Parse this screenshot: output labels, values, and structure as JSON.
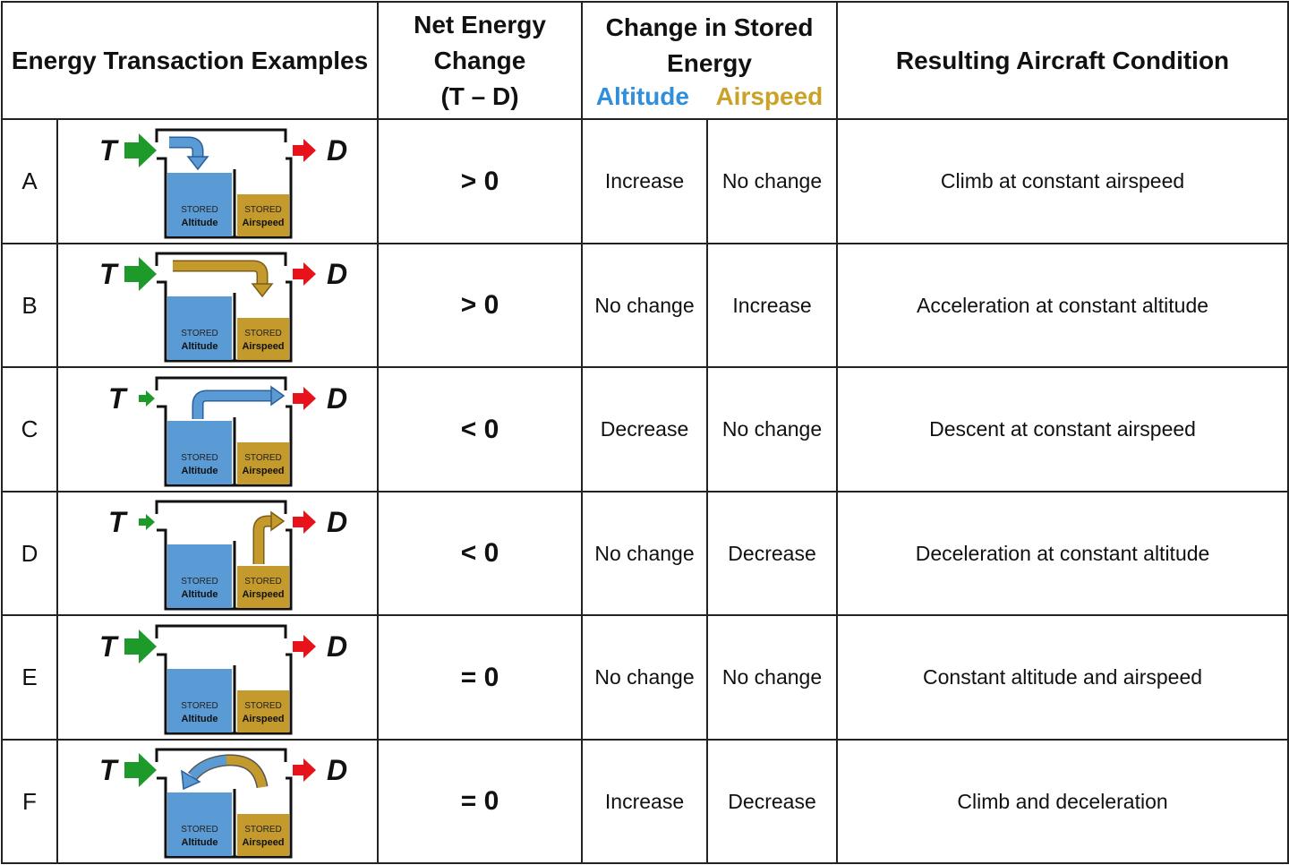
{
  "header": {
    "examples": "Energy Transaction Examples",
    "net_line1": "Net Energy",
    "net_line2": "Change",
    "net_line3": "(T – D)",
    "stored_line1": "Change in Stored",
    "stored_line2": "Energy",
    "altitude": "Altitude",
    "airspeed": "Airspeed",
    "result": "Resulting Aircraft Condition"
  },
  "diagram_labels": {
    "thrust": "T",
    "drag": "D",
    "stored": "STORED",
    "altitude": "Altitude",
    "airspeed": "Airspeed"
  },
  "colors": {
    "altitude_blue": "#5b9bd5",
    "airspeed_gold": "#c49a2c",
    "thrust_green": "#1e9a2a",
    "drag_red": "#e8131a",
    "header_altitude": "#2f8fdd",
    "header_airspeed": "#c9a227"
  },
  "rows": [
    {
      "letter": "A",
      "net": "> 0",
      "altitude": "Increase",
      "airspeed": "No change",
      "result": "Climb at constant airspeed",
      "thrust": "large",
      "flow": "thrust-to-altitude"
    },
    {
      "letter": "B",
      "net": "> 0",
      "altitude": "No change",
      "airspeed": "Increase",
      "result": "Acceleration at constant altitude",
      "thrust": "large",
      "flow": "thrust-to-airspeed"
    },
    {
      "letter": "C",
      "net": "< 0",
      "altitude": "Decrease",
      "airspeed": "No change",
      "result": "Descent at constant airspeed",
      "thrust": "small",
      "flow": "altitude-to-drag"
    },
    {
      "letter": "D",
      "net": "< 0",
      "altitude": "No change",
      "airspeed": "Decrease",
      "result": "Deceleration at constant altitude",
      "thrust": "small",
      "flow": "airspeed-to-drag"
    },
    {
      "letter": "E",
      "net": "= 0",
      "altitude": "No change",
      "airspeed": "No change",
      "result": "Constant altitude and airspeed",
      "thrust": "large",
      "flow": "none"
    },
    {
      "letter": "F",
      "net": "= 0",
      "altitude": "Increase",
      "airspeed": "Decrease",
      "result": "Climb and deceleration",
      "thrust": "large",
      "flow": "airspeed-to-altitude"
    }
  ]
}
